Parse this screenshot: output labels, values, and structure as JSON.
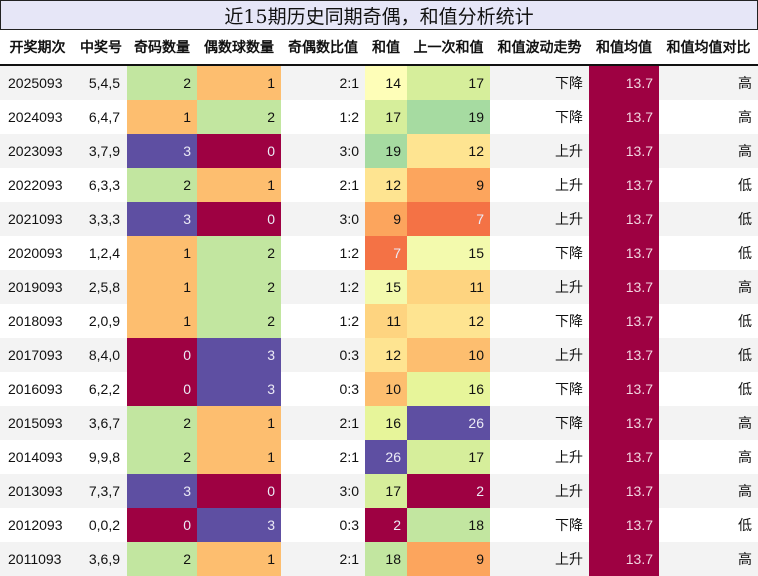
{
  "title": "近15期历史同期奇偶，和值分析统计",
  "columns": [
    "开奖期次",
    "中奖号",
    "奇码数量",
    "偶数球数量",
    "奇偶数比值",
    "和值",
    "上一次和值",
    "和值波动走势",
    "和值均值",
    "和值均值对比"
  ],
  "colors": {
    "odd_even_3_or_count_3": "#5e4fa2",
    "count_0": "#9e0142",
    "count_1": "#fdbe6f",
    "count_2": "#c2e6a0",
    "mean_bg": "#9e0142"
  },
  "rows": [
    {
      "period": "2025093",
      "numbers": "5,4,5",
      "odd": "2",
      "even": "1",
      "ratio": "2:1",
      "sum": "14",
      "prev_sum": "17",
      "trend": "下降",
      "mean": "13.7",
      "compare": "高",
      "sum_color": "#fefeb8",
      "prev_color": "#d6ee9b"
    },
    {
      "period": "2024093",
      "numbers": "6,4,7",
      "odd": "1",
      "even": "2",
      "ratio": "1:2",
      "sum": "17",
      "prev_sum": "19",
      "trend": "下降",
      "mean": "13.7",
      "compare": "高",
      "sum_color": "#d6ee9b",
      "prev_color": "#a6dba1"
    },
    {
      "period": "2023093",
      "numbers": "3,7,9",
      "odd": "3",
      "even": "0",
      "ratio": "3:0",
      "sum": "19",
      "prev_sum": "12",
      "trend": "上升",
      "mean": "13.7",
      "compare": "高",
      "sum_color": "#a6dba1",
      "prev_color": "#fee491"
    },
    {
      "period": "2022093",
      "numbers": "6,3,3",
      "odd": "2",
      "even": "1",
      "ratio": "2:1",
      "sum": "12",
      "prev_sum": "9",
      "trend": "上升",
      "mean": "13.7",
      "compare": "低",
      "sum_color": "#fee491",
      "prev_color": "#fca55d"
    },
    {
      "period": "2021093",
      "numbers": "3,3,3",
      "odd": "3",
      "even": "0",
      "ratio": "3:0",
      "sum": "9",
      "prev_sum": "7",
      "trend": "上升",
      "mean": "13.7",
      "compare": "低",
      "sum_color": "#fca55d",
      "prev_color": "#f47245"
    },
    {
      "period": "2020093",
      "numbers": "1,2,4",
      "odd": "1",
      "even": "2",
      "ratio": "1:2",
      "sum": "7",
      "prev_sum": "15",
      "trend": "下降",
      "mean": "13.7",
      "compare": "低",
      "sum_color": "#f47245",
      "prev_color": "#f3faad"
    },
    {
      "period": "2019093",
      "numbers": "2,5,8",
      "odd": "1",
      "even": "2",
      "ratio": "1:2",
      "sum": "15",
      "prev_sum": "11",
      "trend": "上升",
      "mean": "13.7",
      "compare": "高",
      "sum_color": "#f3faad",
      "prev_color": "#fed480"
    },
    {
      "period": "2018093",
      "numbers": "2,0,9",
      "odd": "1",
      "even": "2",
      "ratio": "1:2",
      "sum": "11",
      "prev_sum": "12",
      "trend": "下降",
      "mean": "13.7",
      "compare": "低",
      "sum_color": "#fed480",
      "prev_color": "#fee491"
    },
    {
      "period": "2017093",
      "numbers": "8,4,0",
      "odd": "0",
      "even": "3",
      "ratio": "0:3",
      "sum": "12",
      "prev_sum": "10",
      "trend": "上升",
      "mean": "13.7",
      "compare": "低",
      "sum_color": "#fee491",
      "prev_color": "#fdbe6f"
    },
    {
      "period": "2016093",
      "numbers": "6,2,2",
      "odd": "0",
      "even": "3",
      "ratio": "0:3",
      "sum": "10",
      "prev_sum": "16",
      "trend": "下降",
      "mean": "13.7",
      "compare": "低",
      "sum_color": "#fdbe6f",
      "prev_color": "#e7f59a"
    },
    {
      "period": "2015093",
      "numbers": "3,6,7",
      "odd": "2",
      "even": "1",
      "ratio": "2:1",
      "sum": "16",
      "prev_sum": "26",
      "trend": "下降",
      "mean": "13.7",
      "compare": "高",
      "sum_color": "#e7f59a",
      "prev_color": "#5e4fa2"
    },
    {
      "period": "2014093",
      "numbers": "9,9,8",
      "odd": "2",
      "even": "1",
      "ratio": "2:1",
      "sum": "26",
      "prev_sum": "17",
      "trend": "上升",
      "mean": "13.7",
      "compare": "高",
      "sum_color": "#5e4fa2",
      "prev_color": "#d6ee9b"
    },
    {
      "period": "2013093",
      "numbers": "7,3,7",
      "odd": "3",
      "even": "0",
      "ratio": "3:0",
      "sum": "17",
      "prev_sum": "2",
      "trend": "上升",
      "mean": "13.7",
      "compare": "高",
      "sum_color": "#d6ee9b",
      "prev_color": "#9e0142"
    },
    {
      "period": "2012093",
      "numbers": "0,0,2",
      "odd": "0",
      "even": "3",
      "ratio": "0:3",
      "sum": "2",
      "prev_sum": "18",
      "trend": "下降",
      "mean": "13.7",
      "compare": "低",
      "sum_color": "#9e0142",
      "prev_color": "#c2e6a0"
    },
    {
      "period": "2011093",
      "numbers": "3,6,9",
      "odd": "2",
      "even": "1",
      "ratio": "2:1",
      "sum": "18",
      "prev_sum": "9",
      "trend": "上升",
      "mean": "13.7",
      "compare": "高",
      "sum_color": "#c2e6a0",
      "prev_color": "#fca55d"
    }
  ]
}
